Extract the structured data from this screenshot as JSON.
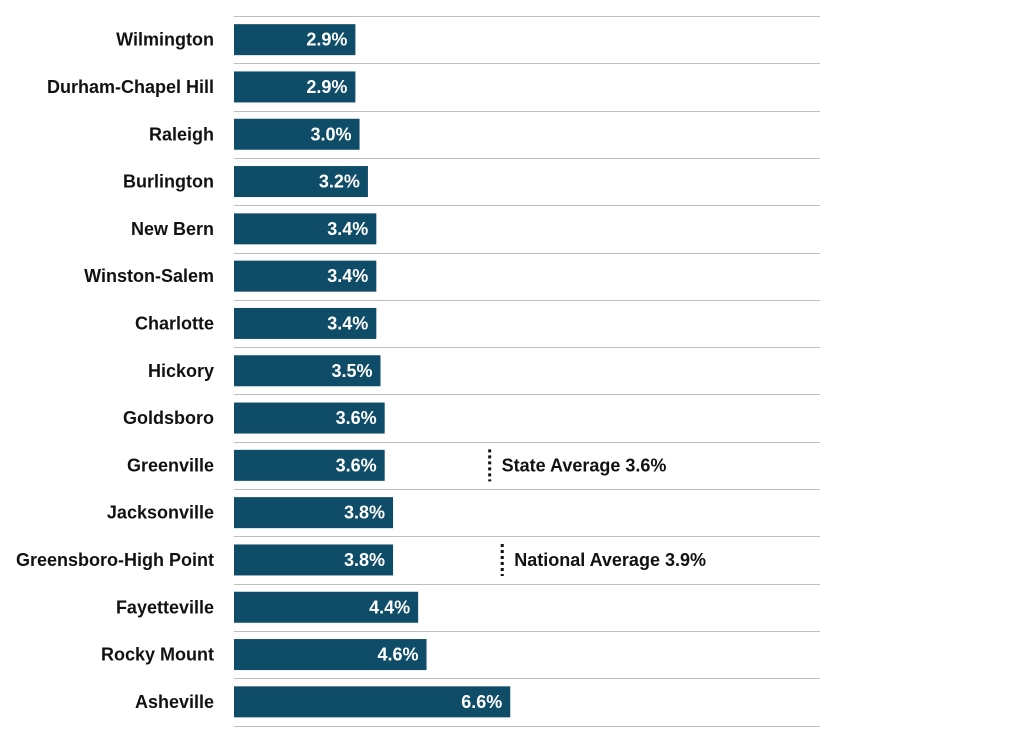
{
  "chart_data": {
    "type": "bar",
    "orientation": "horizontal",
    "categories": [
      "Wilmington",
      "Durham-Chapel Hill",
      "Raleigh",
      "Burlington",
      "New Bern",
      "Winston-Salem",
      "Charlotte",
      "Hickory",
      "Goldsboro",
      "Greenville",
      "Jacksonville",
      "Greensboro-High Point",
      "Fayetteville",
      "Rocky Mount",
      "Asheville"
    ],
    "values": [
      2.9,
      2.9,
      3.0,
      3.2,
      3.4,
      3.4,
      3.4,
      3.5,
      3.6,
      3.6,
      3.8,
      3.8,
      4.4,
      4.6,
      6.6
    ],
    "value_labels": [
      "2.9%",
      "2.9%",
      "3.0%",
      "3.2%",
      "3.4%",
      "3.4%",
      "3.4%",
      "3.5%",
      "3.6%",
      "3.6%",
      "3.8%",
      "3.8%",
      "4.4%",
      "4.6%",
      "6.6%"
    ],
    "xlim": [
      0,
      14
    ],
    "bar_color": "#0f4c68",
    "grid_color": "#bfbfbf",
    "reference_lines": [
      {
        "label": "State Average 3.6%",
        "value": 3.6,
        "row": "Greenville"
      },
      {
        "label": "National Average 3.9%",
        "value": 3.9,
        "row": "Greensboro-High Point"
      }
    ]
  }
}
